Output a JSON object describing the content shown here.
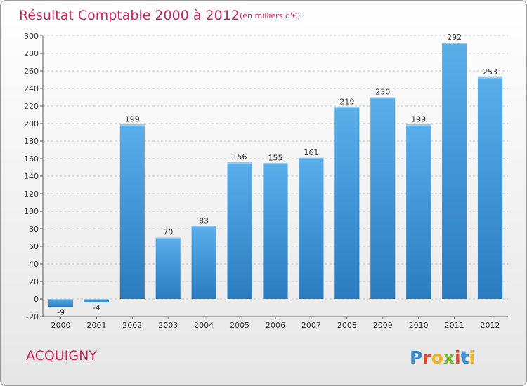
{
  "chart_data": {
    "type": "bar",
    "title": "Résultat Comptable 2000 à 2012",
    "subtitle": "(en milliers d'€)",
    "categories": [
      "2000",
      "2001",
      "2002",
      "2003",
      "2004",
      "2005",
      "2006",
      "2007",
      "2008",
      "2009",
      "2010",
      "2011",
      "2012"
    ],
    "values": [
      -9,
      -4,
      199,
      70,
      83,
      156,
      155,
      161,
      219,
      230,
      199,
      292,
      253
    ],
    "xlabel": "",
    "ylabel": "",
    "ylim": [
      -20,
      300
    ],
    "yticks": [
      -20,
      0,
      20,
      40,
      60,
      80,
      100,
      120,
      140,
      160,
      180,
      200,
      220,
      240,
      260,
      280,
      300
    ],
    "grid": "horizontal dashed",
    "legend": "none",
    "colors": {
      "bar_top": "#5aaeea",
      "bar_bottom": "#2a7cbf",
      "title": "#c0285a"
    }
  },
  "place_name": "ACQUIGNY",
  "logo": {
    "text": "Proxiti",
    "letters": [
      {
        "ch": "P",
        "color": "#3a8fd9"
      },
      {
        "ch": "r",
        "color": "#e8452f"
      },
      {
        "ch": "o",
        "color": "#f4b41a"
      },
      {
        "ch": "x",
        "color": "#7ab929"
      },
      {
        "ch": "i",
        "color": "#e8452f"
      },
      {
        "ch": "t",
        "color": "#3a8fd9"
      },
      {
        "ch": "i",
        "color": "#f4b41a"
      }
    ]
  }
}
